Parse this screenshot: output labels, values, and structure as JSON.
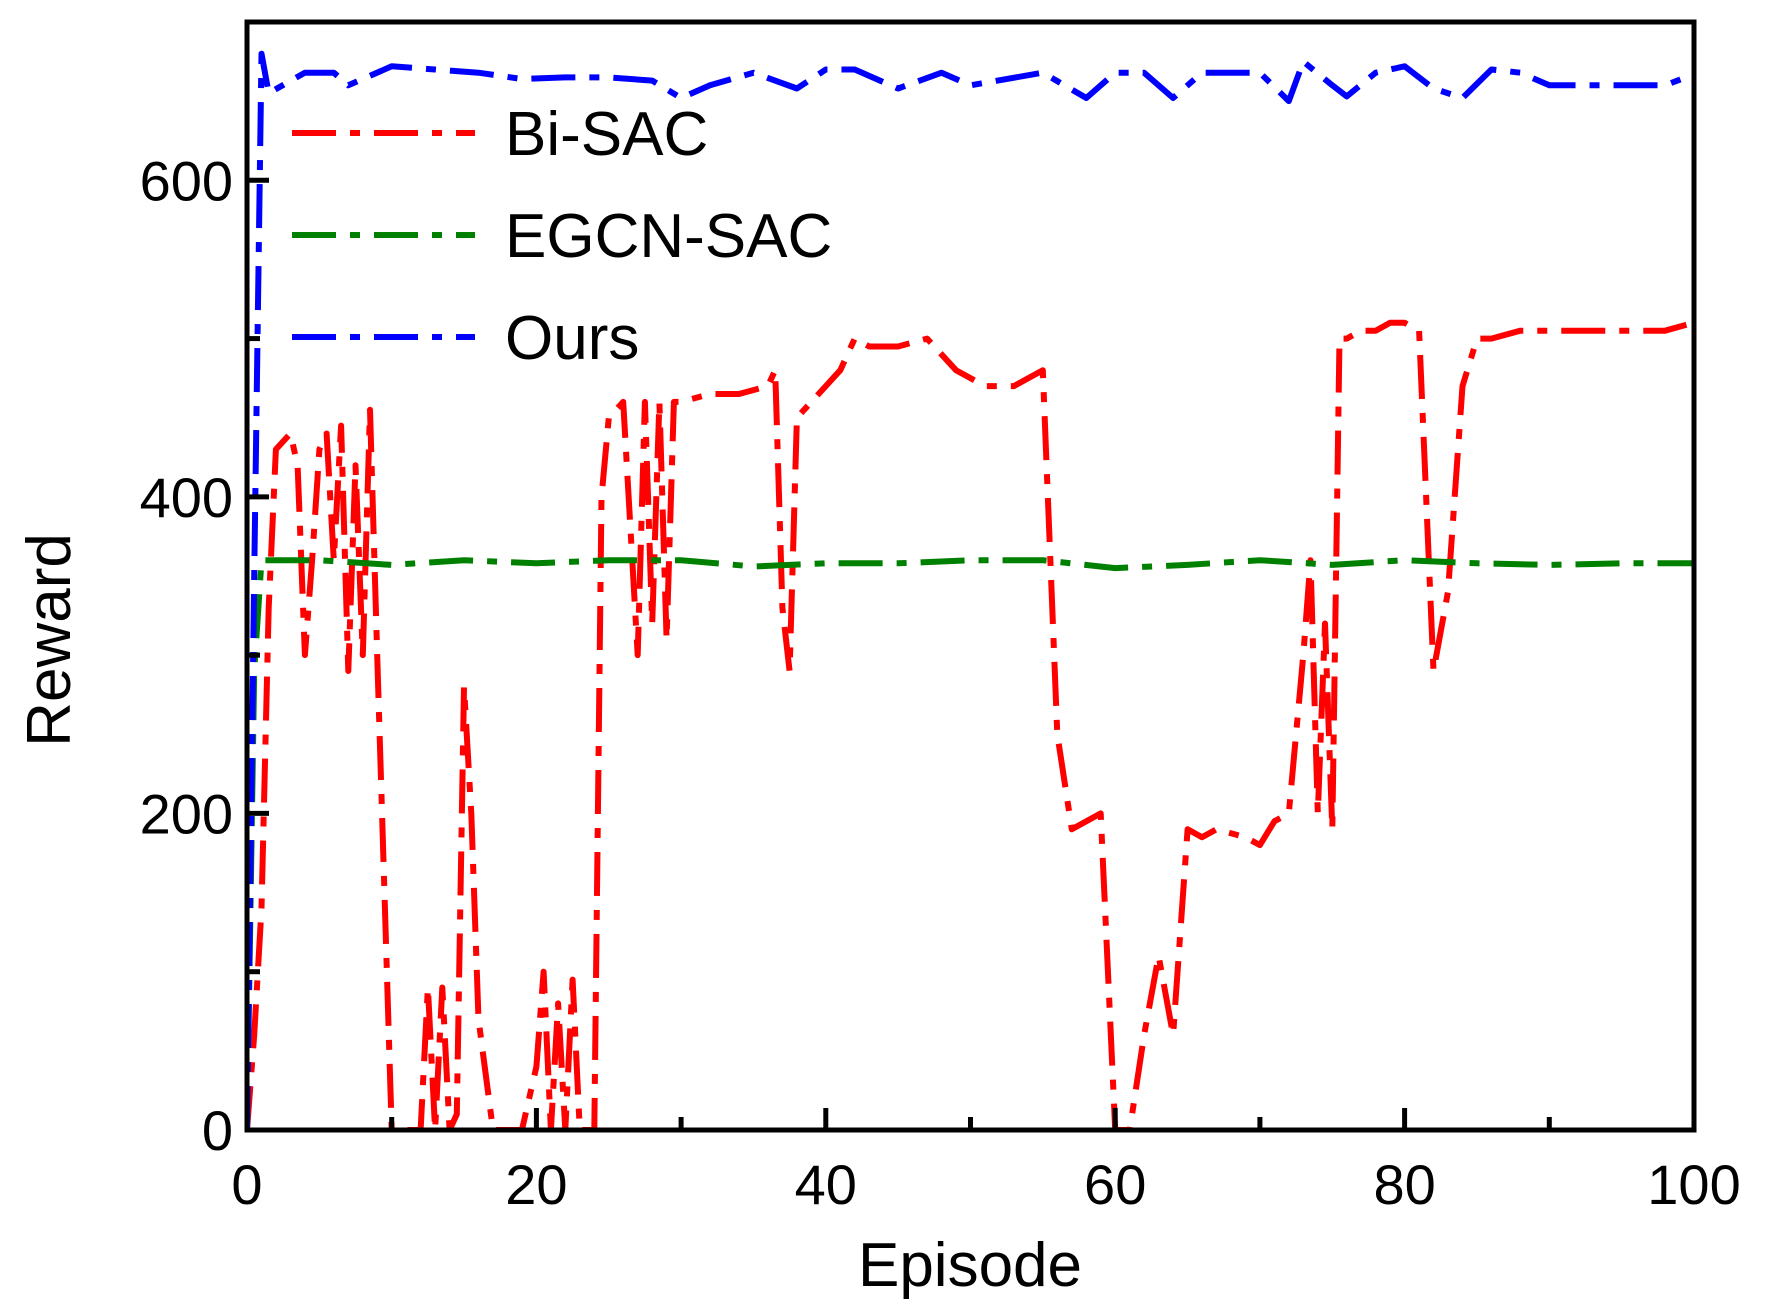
{
  "chart_data": {
    "type": "line",
    "xlabel": "Episode",
    "ylabel": "Reward",
    "xlim": [
      0,
      100
    ],
    "ylim": [
      0,
      700
    ],
    "x_major_ticks": [
      0,
      20,
      40,
      60,
      80,
      100
    ],
    "x_minor_ticks": [
      10,
      30,
      50,
      70,
      90
    ],
    "y_major_ticks": [
      0,
      200,
      400,
      600
    ],
    "y_minor_ticks": [
      100,
      300,
      500
    ],
    "legend_position": "top-left",
    "grid": false,
    "series": [
      {
        "name": "Bi-SAC",
        "color": "#ff0000",
        "dash": "dash-dot",
        "points": [
          [
            0,
            0
          ],
          [
            0.5,
            60
          ],
          [
            1,
            140
          ],
          [
            1.5,
            330
          ],
          [
            2,
            430
          ],
          [
            3,
            440
          ],
          [
            3.5,
            420
          ],
          [
            4,
            300
          ],
          [
            4.5,
            360
          ],
          [
            5,
            430
          ],
          [
            5.5,
            440
          ],
          [
            6,
            360
          ],
          [
            6.5,
            445
          ],
          [
            7,
            290
          ],
          [
            7.5,
            420
          ],
          [
            8,
            300
          ],
          [
            8.5,
            455
          ],
          [
            9,
            300
          ],
          [
            10,
            0
          ],
          [
            11,
            0
          ],
          [
            12,
            0
          ],
          [
            12.5,
            90
          ],
          [
            13,
            0
          ],
          [
            13.5,
            90
          ],
          [
            14,
            0
          ],
          [
            14.5,
            10
          ],
          [
            15,
            280
          ],
          [
            15.5,
            200
          ],
          [
            16,
            70
          ],
          [
            17,
            0
          ],
          [
            18,
            0
          ],
          [
            19,
            0
          ],
          [
            20,
            40
          ],
          [
            20.5,
            100
          ],
          [
            21,
            0
          ],
          [
            21.5,
            80
          ],
          [
            22,
            0
          ],
          [
            22.5,
            95
          ],
          [
            23,
            0
          ],
          [
            23.5,
            0
          ],
          [
            24,
            0
          ],
          [
            24.5,
            400
          ],
          [
            25,
            450
          ],
          [
            26,
            460
          ],
          [
            27,
            300
          ],
          [
            27.5,
            460
          ],
          [
            28,
            320
          ],
          [
            28.5,
            460
          ],
          [
            29,
            310
          ],
          [
            29.5,
            460
          ],
          [
            30,
            460
          ],
          [
            32,
            465
          ],
          [
            34,
            465
          ],
          [
            36,
            470
          ],
          [
            36.5,
            480
          ],
          [
            37,
            330
          ],
          [
            37.5,
            290
          ],
          [
            38,
            450
          ],
          [
            39,
            460
          ],
          [
            40,
            470
          ],
          [
            41,
            480
          ],
          [
            42,
            500
          ],
          [
            43,
            495
          ],
          [
            45,
            495
          ],
          [
            47,
            500
          ],
          [
            49,
            480
          ],
          [
            51,
            470
          ],
          [
            53,
            470
          ],
          [
            55,
            480
          ],
          [
            56,
            250
          ],
          [
            57,
            190
          ],
          [
            59,
            200
          ],
          [
            60,
            0
          ],
          [
            61,
            0
          ],
          [
            62,
            60
          ],
          [
            63,
            110
          ],
          [
            64,
            60
          ],
          [
            65,
            190
          ],
          [
            66,
            185
          ],
          [
            67,
            190
          ],
          [
            69,
            185
          ],
          [
            70,
            180
          ],
          [
            71,
            195
          ],
          [
            72,
            200
          ],
          [
            73,
            300
          ],
          [
            73.5,
            360
          ],
          [
            74,
            200
          ],
          [
            74.5,
            320
          ],
          [
            75,
            190
          ],
          [
            75.5,
            500
          ],
          [
            76,
            500
          ],
          [
            77,
            505
          ],
          [
            78,
            505
          ],
          [
            79,
            510
          ],
          [
            80,
            510
          ],
          [
            81,
            505
          ],
          [
            82,
            290
          ],
          [
            83,
            340
          ],
          [
            84,
            470
          ],
          [
            85,
            500
          ],
          [
            86,
            500
          ],
          [
            88,
            505
          ],
          [
            90,
            505
          ],
          [
            92,
            505
          ],
          [
            94,
            505
          ],
          [
            96,
            505
          ],
          [
            98,
            505
          ],
          [
            100,
            510
          ]
        ]
      },
      {
        "name": "EGCN-SAC",
        "color": "#008000",
        "dash": "dash-dot",
        "points": [
          [
            0,
            0
          ],
          [
            0.5,
            290
          ],
          [
            1,
            360
          ],
          [
            5,
            360
          ],
          [
            10,
            357
          ],
          [
            15,
            360
          ],
          [
            20,
            358
          ],
          [
            25,
            360
          ],
          [
            30,
            360
          ],
          [
            35,
            356
          ],
          [
            40,
            358
          ],
          [
            45,
            358
          ],
          [
            50,
            360
          ],
          [
            55,
            360
          ],
          [
            60,
            355
          ],
          [
            65,
            357
          ],
          [
            70,
            360
          ],
          [
            75,
            357
          ],
          [
            80,
            360
          ],
          [
            85,
            358
          ],
          [
            90,
            357
          ],
          [
            95,
            358
          ],
          [
            100,
            358
          ]
        ]
      },
      {
        "name": "Ours",
        "color": "#0000ff",
        "dash": "dash-dot",
        "points": [
          [
            0,
            0
          ],
          [
            0.5,
            350
          ],
          [
            1,
            680
          ],
          [
            1.5,
            655
          ],
          [
            4,
            668
          ],
          [
            6,
            668
          ],
          [
            7,
            660
          ],
          [
            10,
            672
          ],
          [
            13,
            670
          ],
          [
            16,
            668
          ],
          [
            19,
            664
          ],
          [
            22,
            665
          ],
          [
            25,
            665
          ],
          [
            28,
            663
          ],
          [
            30,
            652
          ],
          [
            32,
            660
          ],
          [
            35,
            668
          ],
          [
            38,
            658
          ],
          [
            40,
            670
          ],
          [
            42,
            670
          ],
          [
            45,
            658
          ],
          [
            48,
            668
          ],
          [
            50,
            660
          ],
          [
            55,
            668
          ],
          [
            58,
            652
          ],
          [
            60,
            668
          ],
          [
            62,
            668
          ],
          [
            64,
            652
          ],
          [
            66,
            668
          ],
          [
            70,
            668
          ],
          [
            72,
            650
          ],
          [
            73,
            675
          ],
          [
            75,
            660
          ],
          [
            76,
            653
          ],
          [
            78,
            668
          ],
          [
            80,
            672
          ],
          [
            82,
            658
          ],
          [
            84,
            652
          ],
          [
            86,
            670
          ],
          [
            88,
            668
          ],
          [
            90,
            660
          ],
          [
            92,
            660
          ],
          [
            94,
            660
          ],
          [
            96,
            660
          ],
          [
            98,
            660
          ],
          [
            100,
            667
          ]
        ]
      }
    ]
  }
}
